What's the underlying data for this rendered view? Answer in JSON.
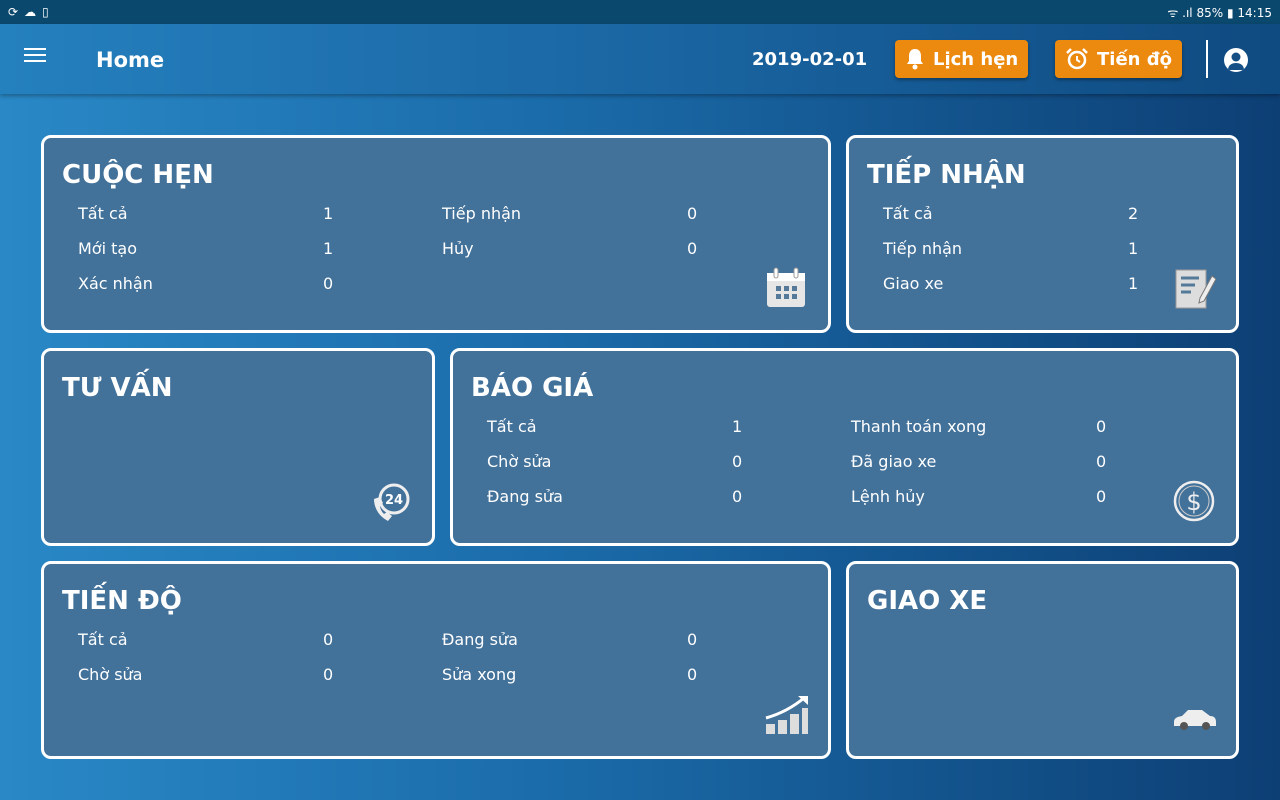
{
  "status_bar": {
    "battery": "85%",
    "time": "14:15"
  },
  "header": {
    "title": "Home",
    "date": "2019-02-01",
    "btn_appointments": "Lịch hẹn",
    "btn_progress": "Tiến độ"
  },
  "cards": [
    {
      "id": "cuoc-hen",
      "title": "CUỘC HẸN",
      "icon": "calendar-icon",
      "cols": [
        [
          [
            "Tất cả",
            "1"
          ],
          [
            "Mới tạo",
            "1"
          ],
          [
            "Xác nhận",
            "0"
          ]
        ],
        [
          [
            "Tiếp nhận",
            "0"
          ],
          [
            "Hủy",
            "0"
          ]
        ]
      ]
    },
    {
      "id": "tiep-nhan",
      "title": "TIẾP NHẬN",
      "icon": "document-edit-icon",
      "cols": [
        [
          [
            "Tất cả",
            "2"
          ],
          [
            "Tiếp nhận",
            "1"
          ],
          [
            "Giao xe",
            "1"
          ]
        ]
      ]
    },
    {
      "id": "tu-van",
      "title": "TƯ VẤN",
      "icon": "phone-24-icon",
      "cols": []
    },
    {
      "id": "bao-gia",
      "title": "BÁO GIÁ",
      "icon": "dollar-icon",
      "cols": [
        [
          [
            "Tất cả",
            "1"
          ],
          [
            "Chờ sửa",
            "0"
          ],
          [
            "Đang sửa",
            "0"
          ]
        ],
        [
          [
            "Thanh toán xong",
            "0"
          ],
          [
            "Đã giao xe",
            "0"
          ],
          [
            "Lệnh hủy",
            "0"
          ]
        ]
      ]
    },
    {
      "id": "tien-do",
      "title": "TIẾN ĐỘ",
      "icon": "growth-chart-icon",
      "cols": [
        [
          [
            "Tất cả",
            "0"
          ],
          [
            "Chờ sửa",
            "0"
          ]
        ],
        [
          [
            "Đang sửa",
            "0"
          ],
          [
            "Sửa xong",
            "0"
          ]
        ]
      ]
    },
    {
      "id": "giao-xe",
      "title": "GIAO XE",
      "icon": "car-icon",
      "cols": []
    }
  ]
}
